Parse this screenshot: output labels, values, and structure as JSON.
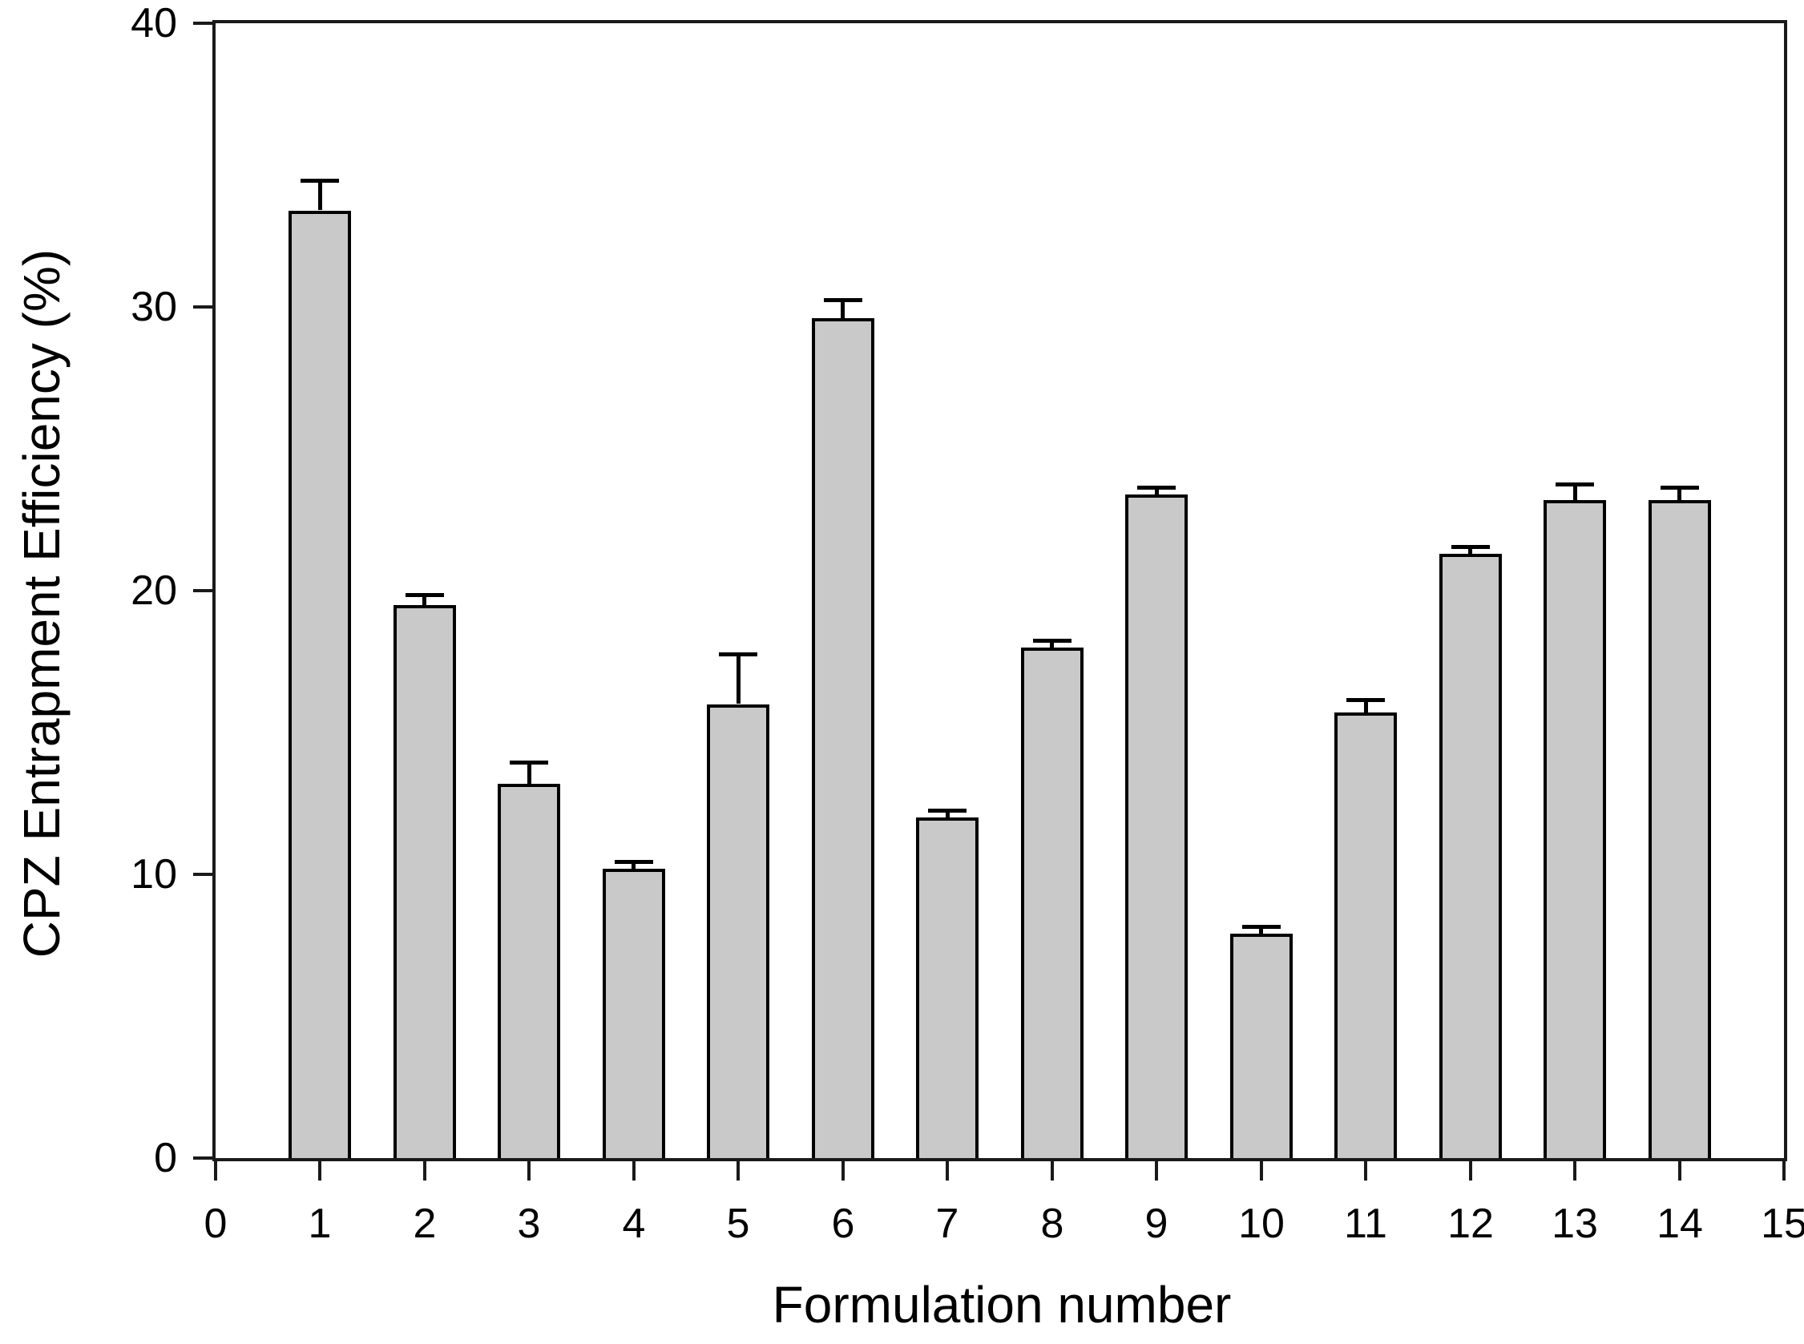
{
  "figure": {
    "background_color": "#ffffff",
    "frame_color": "#1a1a1a"
  },
  "chart_data": {
    "type": "bar",
    "title": "",
    "xlabel": "Formulation number",
    "ylabel": "CPZ Entrapment Efficiency (%)",
    "categories": [
      1,
      2,
      3,
      4,
      5,
      6,
      7,
      8,
      9,
      10,
      11,
      12,
      13,
      14
    ],
    "values": [
      33.4,
      19.5,
      13.2,
      10.2,
      16.0,
      29.6,
      12.0,
      18.0,
      23.4,
      7.9,
      15.7,
      21.3,
      23.2,
      23.2
    ],
    "errors_upper": [
      1.0,
      0.3,
      0.7,
      0.2,
      1.7,
      0.6,
      0.2,
      0.2,
      0.2,
      0.2,
      0.4,
      0.2,
      0.5,
      0.4
    ],
    "xlim": [
      0,
      15
    ],
    "ylim": [
      0,
      40
    ],
    "x_ticks": [
      0,
      1,
      2,
      3,
      4,
      5,
      6,
      7,
      8,
      9,
      10,
      11,
      12,
      13,
      14,
      15
    ],
    "y_ticks": [
      0,
      10,
      20,
      30,
      40
    ],
    "grid": false,
    "legend": false,
    "bar_fill_color": "#c9c9c9",
    "bar_border_color": "#000000",
    "error_bar_color": "#000000",
    "frame": "full-box",
    "error_bars": "upper-only"
  }
}
